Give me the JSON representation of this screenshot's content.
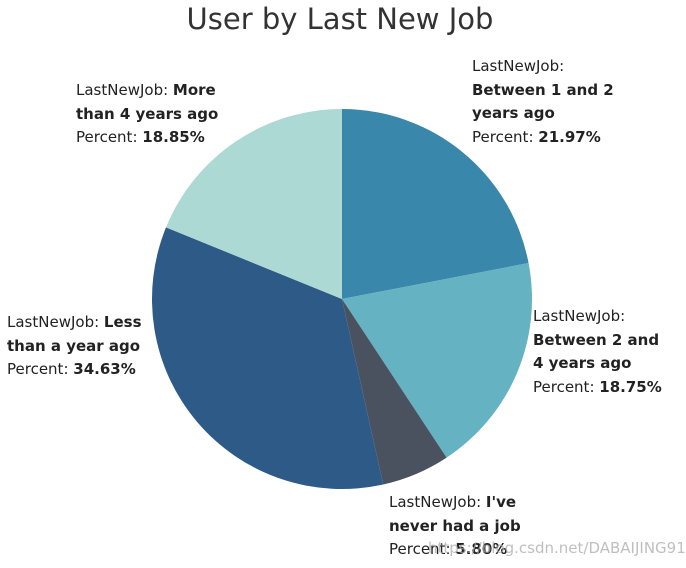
{
  "chart_data": {
    "type": "pie",
    "title": "User by Last New Job",
    "dimension_label": "LastNewJob",
    "measure_label": "Percent",
    "slices": [
      {
        "category": "Between 1 and 2 years ago",
        "percent": 21.97,
        "percent_text": "21.97%",
        "color": "#3987aa"
      },
      {
        "category": "Between 2 and 4 years ago",
        "percent": 18.75,
        "percent_text": "18.75%",
        "color": "#65b2c2"
      },
      {
        "category": "I've never had a job",
        "percent": 5.8,
        "percent_text": "5.80%",
        "color": "#4a5260"
      },
      {
        "category": "Less than a year ago",
        "percent": 34.63,
        "percent_text": "34.63%",
        "color": "#2e5a87"
      },
      {
        "category": "More than 4 years ago",
        "percent": 18.85,
        "percent_text": "18.85%",
        "color": "#acd9d4"
      }
    ]
  },
  "watermark": "https://blog.csdn.net/DABAIJING91"
}
